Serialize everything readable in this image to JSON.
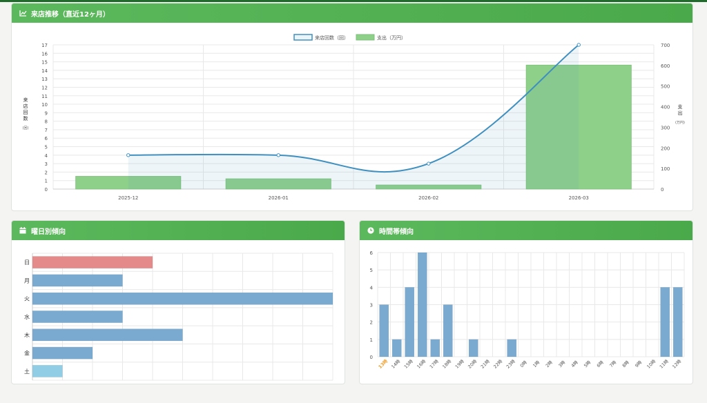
{
  "colors": {
    "header": "#5cb85c",
    "line": "#3f8fbf",
    "bar_green": "#8ecf8a",
    "bar_blue": "#7aaad0",
    "bar_red": "#e58a8a",
    "bar_light": "#92cde6",
    "highlight_tick": "#f0a030"
  },
  "visits_card": {
    "title": "来店推移（直近12ヶ月）",
    "icon": "line-chart-icon"
  },
  "weekday_card": {
    "title": "曜日別傾向",
    "icon": "calendar-icon"
  },
  "hour_card": {
    "title": "時間帯傾向",
    "icon": "clock-icon"
  },
  "chart_data": [
    {
      "type": "bar",
      "categories": [
        "2025-12",
        "2026-01",
        "2026-02",
        "2026-03"
      ],
      "series": [
        {
          "name": "来店回数（回）",
          "type": "line",
          "axis": "left",
          "values": [
            4,
            4,
            3,
            17
          ]
        },
        {
          "name": "支出（万円）",
          "type": "bar",
          "axis": "right",
          "values": [
            62,
            50,
            20,
            602
          ]
        }
      ],
      "ylabel": "来店回数",
      "ylabel_unit": "(回)",
      "y2label": "支出",
      "y2label_unit": "(万円)",
      "ylim": [
        0,
        17
      ],
      "y2lim": [
        0,
        700
      ],
      "yticks": [
        0,
        1,
        2,
        3,
        4,
        5,
        6,
        7,
        8,
        9,
        10,
        11,
        12,
        13,
        14,
        15,
        16,
        17
      ],
      "y2ticks": [
        0,
        100,
        200,
        300,
        400,
        500,
        600,
        700
      ],
      "legend": "top",
      "grid": true
    },
    {
      "type": "bar",
      "orientation": "horizontal",
      "categories": [
        "日",
        "月",
        "火",
        "水",
        "木",
        "金",
        "土"
      ],
      "values": [
        4,
        3,
        10,
        3,
        5,
        2,
        1
      ],
      "xlim": [
        0,
        10
      ],
      "xticks": [
        0,
        1,
        2,
        3,
        4,
        5,
        6,
        7,
        8,
        9,
        10
      ],
      "grid": true
    },
    {
      "type": "bar",
      "categories": [
        "13時",
        "14時",
        "15時",
        "16時",
        "17時",
        "18時",
        "19時",
        "20時",
        "21時",
        "22時",
        "23時",
        "0時",
        "1時",
        "2時",
        "3時",
        "4時",
        "5時",
        "6時",
        "7時",
        "8時",
        "9時",
        "10時",
        "11時",
        "12時"
      ],
      "values": [
        3,
        1,
        4,
        6,
        1,
        3,
        0,
        1,
        0,
        0,
        1,
        0,
        0,
        0,
        0,
        0,
        0,
        0,
        0,
        0,
        0,
        0,
        4,
        4
      ],
      "highlight_category": "13時",
      "ylim": [
        0,
        6
      ],
      "yticks": [
        0,
        1,
        2,
        3,
        4,
        5,
        6
      ],
      "grid": true
    }
  ]
}
